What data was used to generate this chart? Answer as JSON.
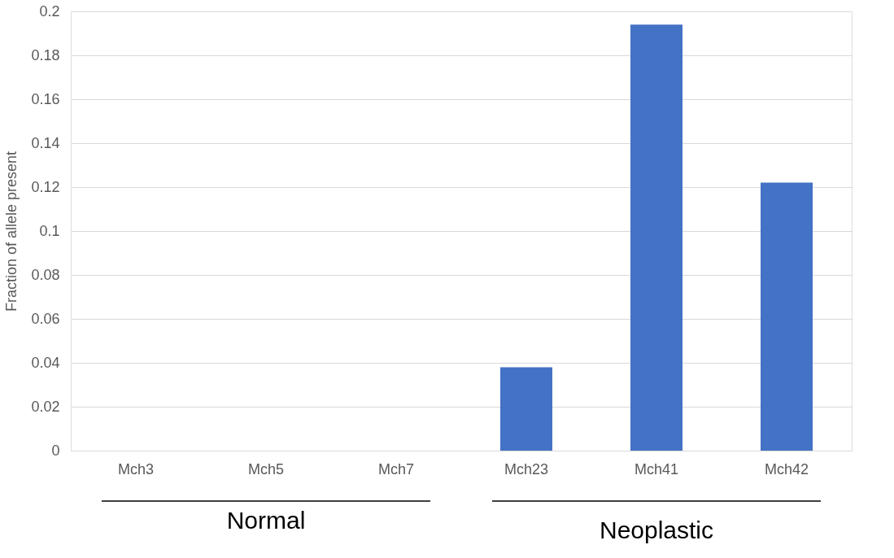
{
  "chart_data": {
    "type": "bar",
    "ylabel": "Fraction of allele present",
    "categories": [
      "Mch3",
      "Mch5",
      "Mch7",
      "Mch23",
      "Mch41",
      "Mch42"
    ],
    "values": [
      0,
      0,
      0,
      0.038,
      0.194,
      0.122
    ],
    "color": "#4472c4",
    "ylim": [
      0,
      0.2
    ],
    "yticks": [
      0,
      0.02,
      0.04,
      0.06,
      0.08,
      0.1,
      0.12,
      0.14,
      0.16,
      0.18,
      0.2
    ],
    "grid": "y",
    "annotations": [
      "Normal",
      "Neoplastic"
    ]
  }
}
